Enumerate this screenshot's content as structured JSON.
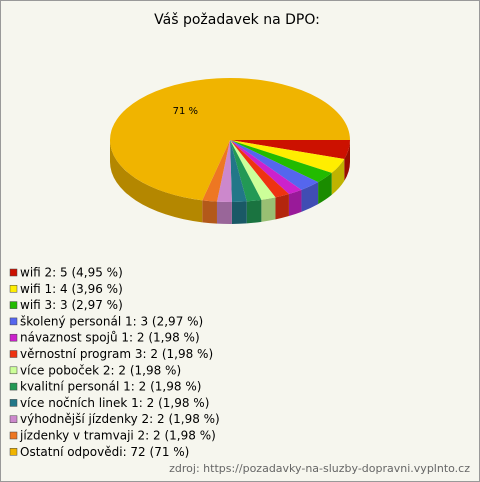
{
  "chart_data": {
    "type": "pie3d",
    "title": "Váš požadavek na DPO:",
    "categories": [
      "wifi 2: 5 (4,95 %)",
      "wifi 1: 4 (3,96 %)",
      "wifi 3: 3 (2,97 %)",
      "školený personál 1: 3 (2,97 %)",
      "návaznost spojů 1: 2 (1,98 %)",
      "věrnostní program 3: 2 (1,98 %)",
      "více poboček 2: 2 (1,98 %)",
      "kvalitní personál 1: 2 (1,98 %)",
      "více nočních linek 1: 2 (1,98 %)",
      "výhodnější jízdenky 2: 2 (1,98 %)",
      "jízdenky v tramvaji 2: 2 (1,98 %)",
      "Ostatní odpovědi: 72 (71 %)"
    ],
    "values": [
      4.95,
      3.96,
      2.97,
      2.97,
      1.98,
      1.98,
      1.98,
      1.98,
      1.98,
      1.98,
      1.98,
      71.29
    ],
    "value_labels": [
      null,
      null,
      null,
      null,
      null,
      null,
      null,
      null,
      null,
      null,
      null,
      "71 %"
    ],
    "colors": [
      "#cc1100",
      "#ffee00",
      "#22bb00",
      "#5566ee",
      "#cc22cc",
      "#ee3311",
      "#ccff99",
      "#229955",
      "#227788",
      "#cc88cc",
      "#ee7722",
      "#f0b400"
    ],
    "source": "zdroj: https://pozadavky-na-sluzby-dopravni.vyplnto.cz"
  }
}
